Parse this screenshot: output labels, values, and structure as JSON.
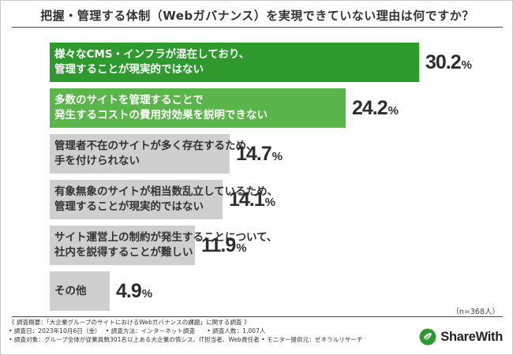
{
  "title": "把握・管理する体制（Webガバナンス）を実現できていない理由は何ですか？",
  "chart_data": {
    "type": "bar",
    "orientation": "horizontal",
    "categories": [
      [
        "様々なCMS・インフラが混在しており、",
        "管理することが現実的ではない"
      ],
      [
        "多数のサイトを管理することで",
        "発生するコストの費用対効果を説明できない"
      ],
      [
        "管理者不在のサイトが多く存在するため、",
        "手を付けられない"
      ],
      [
        "有象無象のサイトが相当数乱立しているため、",
        "管理することが現実的ではない"
      ],
      [
        "サイト運営上の制約が発生することについて、",
        "社内を説得することが難しい"
      ],
      [
        "その他"
      ]
    ],
    "values": [
      30.2,
      24.2,
      14.7,
      14.1,
      11.9,
      4.9
    ],
    "value_labels": [
      {
        "num": "30.2",
        "unit": "%"
      },
      {
        "num": "24.2",
        "unit": "%"
      },
      {
        "num": "14.7",
        "unit": "%"
      },
      {
        "num": "14.1",
        "unit": "%"
      },
      {
        "num": "11.9",
        "unit": "%"
      },
      {
        "num": "4.9",
        "unit": "%"
      }
    ],
    "xlim": [
      0,
      30.2
    ],
    "colors": [
      "#2e9a2e",
      "#5ab54a",
      "#cfcfcf",
      "#cfcfcf",
      "#cfcfcf",
      "#cfcfcf"
    ],
    "label_colors": [
      "#ffffff",
      "#ffffff",
      "#333333",
      "#333333",
      "#333333",
      "#333333"
    ]
  },
  "sample_note": "（n=368人）",
  "footer": [
    "《 調査概要：「大企業グループのサイトにおけるWebガバナンスの課題」に関する調査 》",
    "• 調査日：2023年10月6日（金）　 • 調査方法：インターネット調査　　• 調査人数：1,007人",
    "• 調査対象：グループ全体が従業員数301名以上ある大企業の情シス、IT担当者、Web責任者 • モニター提供元：ゼネラルリサーチ"
  ],
  "brand": {
    "name": "ShareWith",
    "color": "#2e9a2e"
  }
}
